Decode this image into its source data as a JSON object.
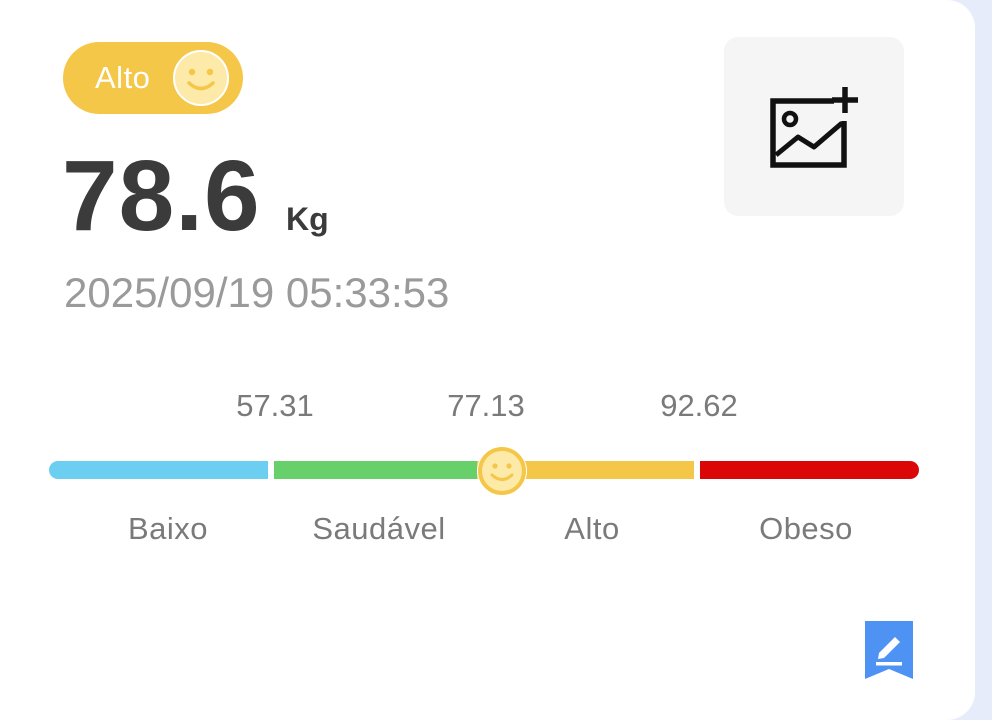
{
  "status": {
    "label": "Alto",
    "icon": "smiley-icon",
    "color": "#f5c748"
  },
  "measurement": {
    "value": "78.6",
    "unit": "Kg",
    "timestamp": "2025/09/19 05:33:53"
  },
  "photo_button": {
    "icon": "add-image-icon"
  },
  "scale": {
    "thresholds": [
      "57.31",
      "77.13",
      "92.62"
    ],
    "categories": [
      {
        "label": "Baixo",
        "color": "#6ccff2"
      },
      {
        "label": "Saudável",
        "color": "#67d06b"
      },
      {
        "label": "Alto",
        "color": "#f5c748"
      },
      {
        "label": "Obeso",
        "color": "#db0707"
      }
    ],
    "marker_icon": "smiley-icon"
  },
  "edit_button": {
    "icon": "edit-icon",
    "color": "#4e93f4"
  }
}
